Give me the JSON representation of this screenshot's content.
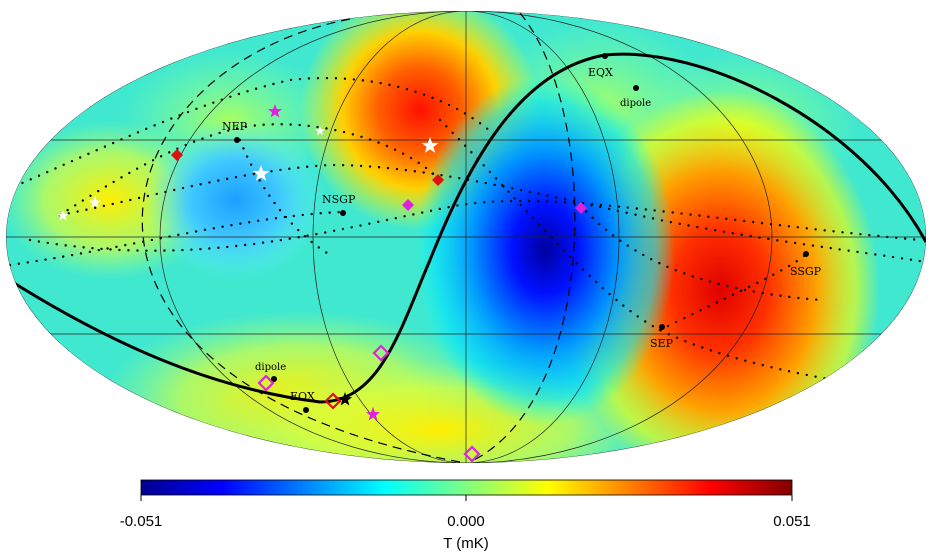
{
  "colorbar": {
    "min_label": "-0.051",
    "mid_label": "0.000",
    "max_label": "0.051",
    "title": "T (mK)",
    "range": [
      -0.051,
      0.051
    ],
    "colors": [
      "#00008f",
      "#0000ff",
      "#0080ff",
      "#00ffff",
      "#80ff80",
      "#ffff00",
      "#ff8000",
      "#ff0000",
      "#800000"
    ]
  },
  "labels": {
    "eqx_top": "EQX",
    "dipole_top": "dipole",
    "nep": "NEP",
    "nsgp": "NSGP",
    "ssgp": "SSGP",
    "sep": "SEP",
    "dipole_bottom": "dipole",
    "eqx_bottom": "EQX"
  },
  "marker_colors": {
    "white_star": "#ffffff",
    "magenta": "#e020e0",
    "red": "#e01010",
    "black": "#000000"
  },
  "icons": {
    "star": "star-icon",
    "diamond": "diamond-icon",
    "dot": "dot-icon"
  }
}
